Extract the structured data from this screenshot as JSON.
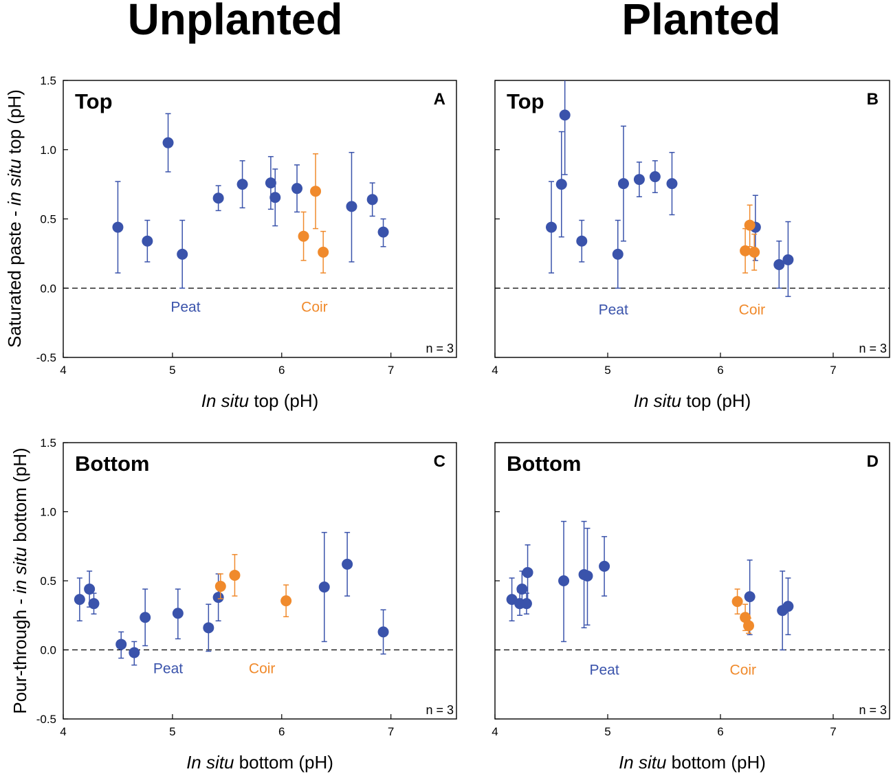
{
  "figure": {
    "column_titles": [
      "Unplanted",
      "Planted"
    ],
    "y_axis_labels": [
      {
        "pre": "Saturated paste - ",
        "italic": "in situ",
        "post": " top (pH)"
      },
      {
        "pre": "Pour-through - ",
        "italic": "in situ",
        "post": " bottom (pH)"
      }
    ],
    "colors": {
      "peat": "#3a53ab",
      "coir": "#f08a2c"
    }
  },
  "chart_data": [
    {
      "type": "scatter",
      "letter": "A",
      "title": "Top",
      "xlabel": {
        "italic": "In situ",
        "post": " top (pH)"
      },
      "xlim": [
        4,
        7.6
      ],
      "ylim": [
        -0.5,
        1.5
      ],
      "xticks": [
        "4",
        "5",
        "6",
        "7"
      ],
      "yticks": [
        "-0.5",
        "0.0",
        "0.5",
        "1.0",
        "1.5"
      ],
      "reference_line": 0,
      "n_label": "n = 3",
      "group_labels": [
        {
          "name": "peat",
          "text": "Peat",
          "x": 5.12,
          "y": -0.17
        },
        {
          "name": "coir",
          "text": "Coir",
          "x": 6.3,
          "y": -0.17
        }
      ],
      "series": [
        {
          "name": "Peat",
          "key": "peat",
          "points": [
            {
              "x": 4.5,
              "y": 0.44,
              "lo": 0.11,
              "hi": 0.77
            },
            {
              "x": 4.77,
              "y": 0.34,
              "lo": 0.19,
              "hi": 0.49
            },
            {
              "x": 4.96,
              "y": 1.05,
              "lo": 0.84,
              "hi": 1.26
            },
            {
              "x": 5.09,
              "y": 0.245,
              "lo": 0.0,
              "hi": 0.49
            },
            {
              "x": 5.42,
              "y": 0.65,
              "lo": 0.56,
              "hi": 0.74
            },
            {
              "x": 5.64,
              "y": 0.75,
              "lo": 0.58,
              "hi": 0.92
            },
            {
              "x": 5.9,
              "y": 0.76,
              "lo": 0.57,
              "hi": 0.95
            },
            {
              "x": 5.94,
              "y": 0.655,
              "lo": 0.45,
              "hi": 0.86
            },
            {
              "x": 6.14,
              "y": 0.72,
              "lo": 0.55,
              "hi": 0.89
            },
            {
              "x": 6.64,
              "y": 0.59,
              "lo": 0.19,
              "hi": 0.98
            },
            {
              "x": 6.83,
              "y": 0.64,
              "lo": 0.52,
              "hi": 0.76
            },
            {
              "x": 6.93,
              "y": 0.405,
              "lo": 0.3,
              "hi": 0.5
            }
          ]
        },
        {
          "name": "Coir",
          "key": "coir",
          "points": [
            {
              "x": 6.2,
              "y": 0.375,
              "lo": 0.2,
              "hi": 0.55
            },
            {
              "x": 6.31,
              "y": 0.7,
              "lo": 0.43,
              "hi": 0.97
            },
            {
              "x": 6.38,
              "y": 0.26,
              "lo": 0.11,
              "hi": 0.41
            }
          ]
        }
      ]
    },
    {
      "type": "scatter",
      "letter": "B",
      "title": "Top",
      "xlabel": {
        "italic": "In situ",
        "post": " top (pH)"
      },
      "xlim": [
        4,
        7.5
      ],
      "ylim": [
        -0.5,
        1.5
      ],
      "xticks": [
        "4",
        "5",
        "6",
        "7"
      ],
      "yticks": [
        "-0.5",
        "0.0",
        "0.5",
        "1.0",
        "1.5"
      ],
      "reference_line": 0,
      "n_label": "n = 3",
      "group_labels": [
        {
          "name": "peat",
          "text": "Peat",
          "x": 5.05,
          "y": -0.19
        },
        {
          "name": "coir",
          "text": "Coir",
          "x": 6.28,
          "y": -0.19
        }
      ],
      "series": [
        {
          "name": "Peat",
          "key": "peat",
          "points": [
            {
              "x": 4.5,
              "y": 0.44,
              "lo": 0.11,
              "hi": 0.77
            },
            {
              "x": 4.59,
              "y": 0.75,
              "lo": 0.37,
              "hi": 1.13
            },
            {
              "x": 4.62,
              "y": 1.25,
              "lo": 0.82,
              "hi": 1.5
            },
            {
              "x": 4.77,
              "y": 0.34,
              "lo": 0.19,
              "hi": 0.49
            },
            {
              "x": 5.09,
              "y": 0.245,
              "lo": 0.0,
              "hi": 0.49
            },
            {
              "x": 5.14,
              "y": 0.755,
              "lo": 0.34,
              "hi": 1.17
            },
            {
              "x": 5.28,
              "y": 0.785,
              "lo": 0.66,
              "hi": 0.91
            },
            {
              "x": 5.42,
              "y": 0.805,
              "lo": 0.69,
              "hi": 0.92
            },
            {
              "x": 5.57,
              "y": 0.755,
              "lo": 0.53,
              "hi": 0.98
            },
            {
              "x": 6.31,
              "y": 0.44,
              "lo": 0.2,
              "hi": 0.67
            },
            {
              "x": 6.52,
              "y": 0.17,
              "lo": 0.0,
              "hi": 0.34
            },
            {
              "x": 6.6,
              "y": 0.205,
              "lo": -0.06,
              "hi": 0.48
            }
          ]
        },
        {
          "name": "Coir",
          "key": "coir",
          "points": [
            {
              "x": 6.22,
              "y": 0.27,
              "lo": 0.11,
              "hi": 0.43
            },
            {
              "x": 6.26,
              "y": 0.455,
              "lo": 0.3,
              "hi": 0.6
            },
            {
              "x": 6.3,
              "y": 0.26,
              "lo": 0.13,
              "hi": 0.39
            }
          ]
        }
      ]
    },
    {
      "type": "scatter",
      "letter": "C",
      "title": "Bottom",
      "xlabel": {
        "italic": "In situ",
        "post": " bottom (pH)"
      },
      "xlim": [
        4,
        7.6
      ],
      "ylim": [
        -0.5,
        1.5
      ],
      "xticks": [
        "4",
        "5",
        "6",
        "7"
      ],
      "yticks": [
        "-0.5",
        "0.0",
        "0.5",
        "1.0",
        "1.5"
      ],
      "reference_line": 0,
      "n_label": "n = 3",
      "group_labels": [
        {
          "name": "peat",
          "text": "Peat",
          "x": 4.96,
          "y": -0.17
        },
        {
          "name": "coir",
          "text": "Coir",
          "x": 5.82,
          "y": -0.17
        }
      ],
      "series": [
        {
          "name": "Peat",
          "key": "peat",
          "points": [
            {
              "x": 4.15,
              "y": 0.365,
              "lo": 0.21,
              "hi": 0.52
            },
            {
              "x": 4.24,
              "y": 0.44,
              "lo": 0.31,
              "hi": 0.57
            },
            {
              "x": 4.28,
              "y": 0.335,
              "lo": 0.26,
              "hi": 0.41
            },
            {
              "x": 4.53,
              "y": 0.04,
              "lo": -0.06,
              "hi": 0.13
            },
            {
              "x": 4.65,
              "y": -0.02,
              "lo": -0.11,
              "hi": 0.06
            },
            {
              "x": 4.75,
              "y": 0.235,
              "lo": 0.03,
              "hi": 0.44
            },
            {
              "x": 5.05,
              "y": 0.265,
              "lo": 0.08,
              "hi": 0.44
            },
            {
              "x": 5.33,
              "y": 0.16,
              "lo": -0.01,
              "hi": 0.33
            },
            {
              "x": 5.42,
              "y": 0.38,
              "lo": 0.21,
              "hi": 0.55
            },
            {
              "x": 6.39,
              "y": 0.455,
              "lo": 0.06,
              "hi": 0.85
            },
            {
              "x": 6.6,
              "y": 0.62,
              "lo": 0.39,
              "hi": 0.85
            },
            {
              "x": 6.93,
              "y": 0.13,
              "lo": -0.03,
              "hi": 0.29
            }
          ]
        },
        {
          "name": "Coir",
          "key": "coir",
          "points": [
            {
              "x": 5.44,
              "y": 0.46,
              "lo": 0.37,
              "hi": 0.55
            },
            {
              "x": 5.57,
              "y": 0.54,
              "lo": 0.39,
              "hi": 0.69
            },
            {
              "x": 6.04,
              "y": 0.355,
              "lo": 0.24,
              "hi": 0.47
            }
          ]
        }
      ]
    },
    {
      "type": "scatter",
      "letter": "D",
      "title": "Bottom",
      "xlabel": {
        "italic": "In situ",
        "post": " bottom (pH)"
      },
      "xlim": [
        4,
        7.5
      ],
      "ylim": [
        -0.5,
        1.5
      ],
      "xticks": [
        "4",
        "5",
        "6",
        "7"
      ],
      "yticks": [
        "-0.5",
        "0.0",
        "0.5",
        "1.0",
        "1.5"
      ],
      "reference_line": 0,
      "n_label": "n = 3",
      "group_labels": [
        {
          "name": "peat",
          "text": "Peat",
          "x": 4.97,
          "y": -0.18
        },
        {
          "name": "coir",
          "text": "Coir",
          "x": 6.2,
          "y": -0.18
        }
      ],
      "series": [
        {
          "name": "Peat",
          "key": "peat",
          "points": [
            {
              "x": 4.15,
              "y": 0.365,
              "lo": 0.21,
              "hi": 0.52
            },
            {
              "x": 4.22,
              "y": 0.335,
              "lo": 0.25,
              "hi": 0.42
            },
            {
              "x": 4.24,
              "y": 0.44,
              "lo": 0.31,
              "hi": 0.57
            },
            {
              "x": 4.28,
              "y": 0.335,
              "lo": 0.26,
              "hi": 0.41
            },
            {
              "x": 4.29,
              "y": 0.56,
              "lo": 0.36,
              "hi": 0.76
            },
            {
              "x": 4.61,
              "y": 0.5,
              "lo": 0.06,
              "hi": 0.93
            },
            {
              "x": 4.79,
              "y": 0.545,
              "lo": 0.16,
              "hi": 0.93
            },
            {
              "x": 4.82,
              "y": 0.535,
              "lo": 0.18,
              "hi": 0.88
            },
            {
              "x": 4.97,
              "y": 0.605,
              "lo": 0.39,
              "hi": 0.82
            },
            {
              "x": 6.26,
              "y": 0.385,
              "lo": 0.11,
              "hi": 0.65
            },
            {
              "x": 6.55,
              "y": 0.285,
              "lo": 0.0,
              "hi": 0.57
            },
            {
              "x": 6.6,
              "y": 0.315,
              "lo": 0.11,
              "hi": 0.52
            }
          ]
        },
        {
          "name": "Coir",
          "key": "coir",
          "points": [
            {
              "x": 6.15,
              "y": 0.35,
              "lo": 0.26,
              "hi": 0.44
            },
            {
              "x": 6.22,
              "y": 0.235,
              "lo": 0.14,
              "hi": 0.33
            },
            {
              "x": 6.25,
              "y": 0.175,
              "lo": 0.12,
              "hi": 0.23
            }
          ]
        }
      ]
    }
  ]
}
